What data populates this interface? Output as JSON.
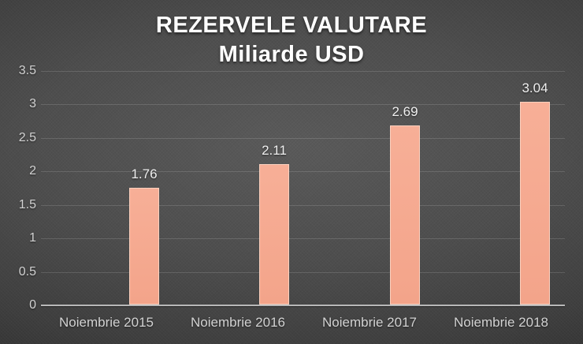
{
  "title": {
    "line1": "REZERVELE VALUTARE",
    "line2": "Miliarde USD"
  },
  "chart_data": {
    "type": "bar",
    "title": "REZERVELE VALUTARE",
    "subtitle": "Miliarde USD",
    "categories": [
      "Noiembrie 2015",
      "Noiembrie 2016",
      "Noiembrie 2017",
      "Noiembrie 2018"
    ],
    "values": [
      1.76,
      2.11,
      2.69,
      3.04
    ],
    "data_labels": [
      "1.76",
      "2.11",
      "2.69",
      "3.04"
    ],
    "xlabel": "",
    "ylabel": "",
    "ylim": [
      0,
      3.5
    ],
    "ytick_step": 0.5,
    "ytick_labels": [
      "0",
      "0.5",
      "1",
      "1.5",
      "2",
      "2.5",
      "3",
      "3.5"
    ],
    "grid": true,
    "legend_position": "none",
    "colors": {
      "bar": "#f5a990",
      "bar_border": "#fbd1bf",
      "background_center": "#5a5a5a",
      "background_edge": "#242424",
      "grid_line": "#5f5f5f",
      "axis_line": "#b8b8b8",
      "tick_text": "#d2d2d2",
      "data_label_text": "#efefef",
      "title_text": "#ffffff"
    }
  }
}
